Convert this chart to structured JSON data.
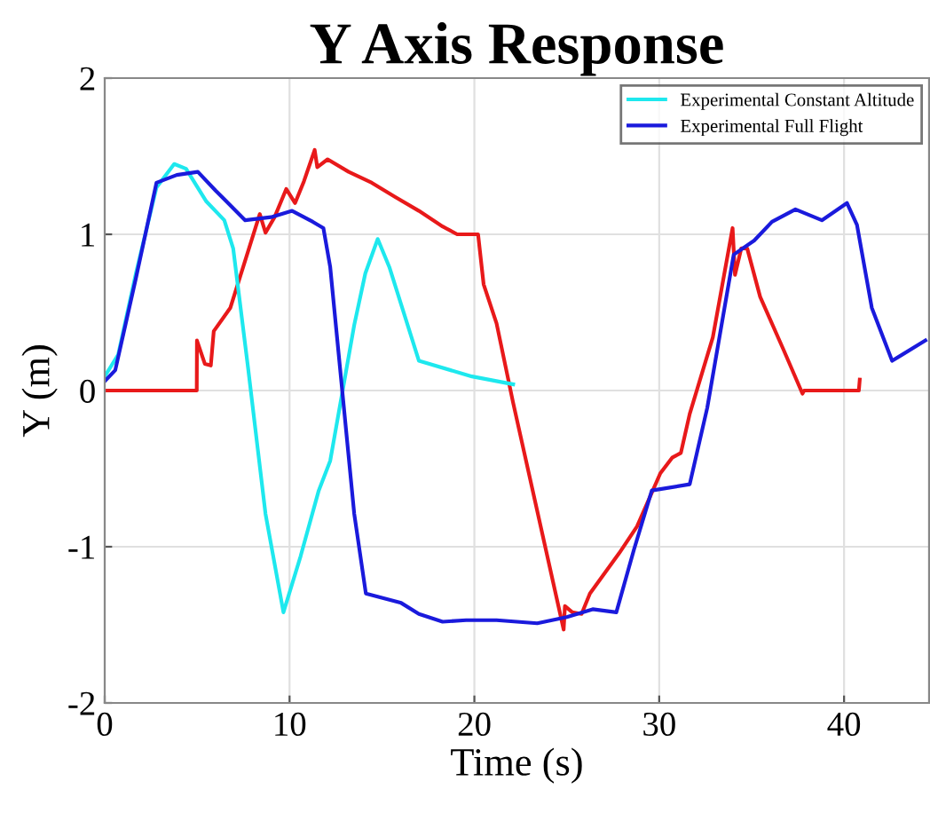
{
  "chart_data": {
    "type": "line",
    "title": "Y Axis Response",
    "xlabel": "Time (s)",
    "ylabel": "Y (m)",
    "xlim": [
      0,
      44.6
    ],
    "xticks": [
      0,
      10,
      20,
      30,
      40
    ],
    "ylim": [
      -2,
      2
    ],
    "yticks": [
      -2,
      -1,
      0,
      1,
      2
    ],
    "grid": true,
    "legend": "top right",
    "series": [
      {
        "color": "#e8191a",
        "x": [
          0,
          4.98,
          4.99,
          5.42,
          5.74,
          5.9,
          6.8,
          8.39,
          8.7,
          9.19,
          9.82,
          10.3,
          10.78,
          11.36,
          11.5,
          12.06,
          13.2,
          14.45,
          15.7,
          17.0,
          18.28,
          19.07,
          20.2,
          20.5,
          21.2,
          22.1,
          24.83,
          24.9,
          25.3,
          25.8,
          26.25,
          27.84,
          28.8,
          30.06,
          30.7,
          31.17,
          31.65,
          32.9,
          33.97,
          34.1,
          34.44,
          34.76,
          35.46,
          36.73,
          37.75,
          37.84,
          40.8,
          40.85
        ],
        "values": [
          0,
          0,
          0.32,
          0.17,
          0.16,
          0.38,
          0.53,
          1.13,
          1.01,
          1.11,
          1.29,
          1.2,
          1.34,
          1.54,
          1.43,
          1.48,
          1.4,
          1.33,
          1.24,
          1.15,
          1.05,
          1.0,
          1.0,
          0.68,
          0.43,
          -0.08,
          -1.53,
          -1.38,
          -1.42,
          -1.43,
          -1.3,
          -1.04,
          -0.87,
          -0.53,
          -0.43,
          -0.4,
          -0.15,
          0.34,
          1.04,
          0.74,
          0.91,
          0.91,
          0.6,
          0.26,
          -0.02,
          0,
          0,
          0.07
        ]
      },
      {
        "name": "Experimental Constant Altitude",
        "color": "#1ee8ee",
        "x": [
          0,
          0.73,
          1.69,
          2.8,
          3.76,
          4.4,
          5.5,
          6.47,
          6.95,
          7.75,
          8.7,
          9.67,
          10.6,
          11.58,
          12.2,
          13.5,
          14.1,
          14.77,
          15.4,
          17.0,
          19.87,
          22.1
        ],
        "values": [
          0.09,
          0.23,
          0.75,
          1.3,
          1.45,
          1.42,
          1.21,
          1.09,
          0.91,
          0.15,
          -0.79,
          -1.42,
          -1.06,
          -0.64,
          -0.45,
          0.42,
          0.75,
          0.97,
          0.79,
          0.19,
          0.09,
          0.04
        ]
      },
      {
        "name": "Experimental Full Flight",
        "color": "#1a1adc",
        "x": [
          0,
          0.57,
          1.69,
          2.8,
          3.9,
          5.04,
          6.0,
          7.6,
          9.0,
          10.14,
          11.26,
          11.83,
          12.2,
          12.85,
          13.5,
          14.13,
          16.04,
          17.0,
          18.28,
          19.55,
          21.2,
          23.4,
          25.0,
          26.4,
          27.68,
          28.63,
          29.6,
          31.65,
          32.6,
          34.03,
          35.14,
          36.1,
          37.37,
          38.8,
          40.16,
          40.7,
          41.5,
          42.6,
          44.4
        ],
        "values": [
          0.06,
          0.13,
          0.72,
          1.33,
          1.38,
          1.4,
          1.28,
          1.09,
          1.11,
          1.15,
          1.08,
          1.04,
          0.79,
          0,
          -0.79,
          -1.3,
          -1.36,
          -1.43,
          -1.48,
          -1.47,
          -1.47,
          -1.49,
          -1.45,
          -1.4,
          -1.42,
          -1.02,
          -0.64,
          -0.6,
          -0.11,
          0.87,
          0.96,
          1.08,
          1.16,
          1.09,
          1.2,
          1.06,
          0.53,
          0.19,
          0.32
        ]
      }
    ]
  }
}
